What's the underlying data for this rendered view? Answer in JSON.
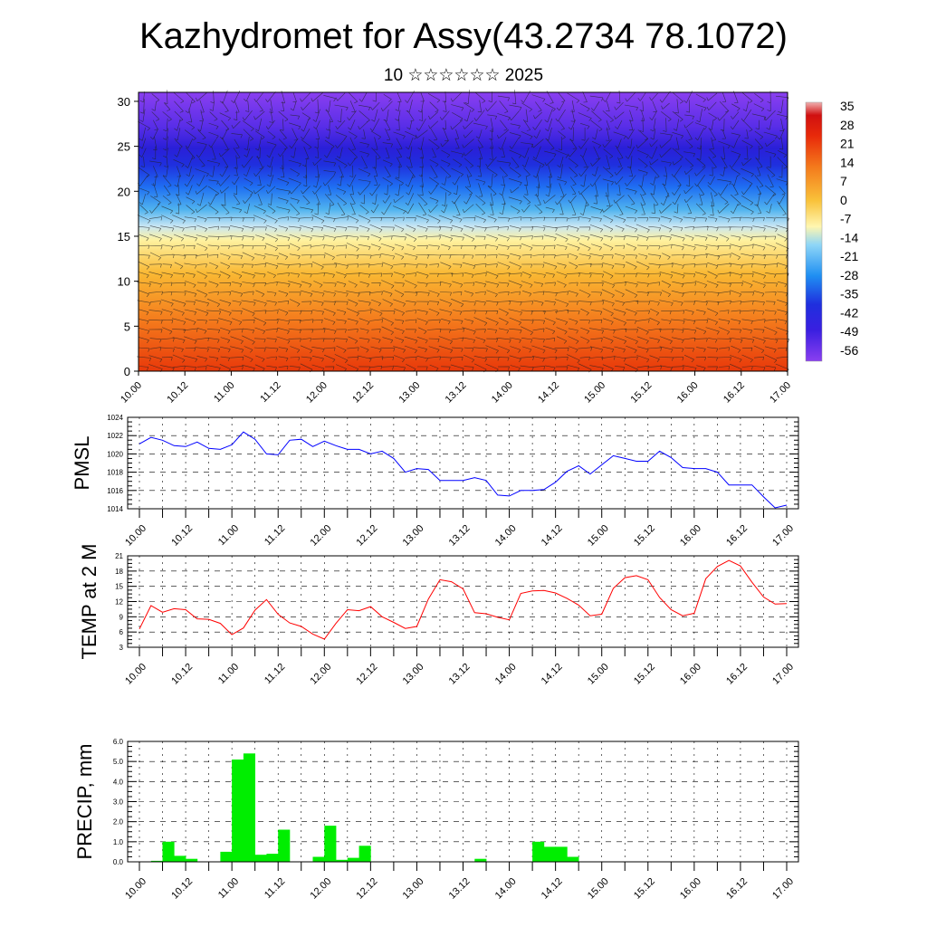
{
  "title": "Kazhydromet for Assy(43.2734 78.1072)",
  "subtitle": "10 ☆☆☆☆☆☆ 2025",
  "time_ticks": [
    "10.00",
    "10.12",
    "11.00",
    "11.12",
    "12.00",
    "12.12",
    "13.00",
    "13.12",
    "14.00",
    "14.12",
    "15.00",
    "15.12",
    "16.00",
    "16.12",
    "17.00"
  ],
  "chart_data": [
    {
      "type": "heatmap",
      "name": "cross-section",
      "y_ticks": [
        0,
        5,
        10,
        15,
        20,
        25,
        30
      ],
      "ylim": [
        0,
        31
      ],
      "colorbar_labels": [
        "35",
        "28",
        "21",
        "14",
        "7",
        "0",
        "-7",
        "-14",
        "-21",
        "-28",
        "-35",
        "-42",
        "-49",
        "-56"
      ],
      "colorbar_range": [
        -63,
        42
      ],
      "vectors": "wind barbs overlay"
    },
    {
      "type": "line",
      "ylabel": "PMSL",
      "ylim": [
        1014,
        1024
      ],
      "y_ticks": [
        "1014",
        "1016",
        "1018",
        "1020",
        "1022",
        "1024"
      ],
      "color": "#0000ff",
      "values": [
        1021.1,
        1021.8,
        1021.5,
        1020.9,
        1020.8,
        1021.3,
        1020.6,
        1020.5,
        1021.0,
        1022.4,
        1021.6,
        1020.0,
        1019.9,
        1021.5,
        1021.6,
        1020.8,
        1021.4,
        1020.9,
        1020.5,
        1020.5,
        1020.0,
        1020.3,
        1019.5,
        1018.0,
        1018.4,
        1018.3,
        1017.1,
        1017.1,
        1017.1,
        1017.4,
        1017.1,
        1015.5,
        1015.4,
        1016.0,
        1016.0,
        1016.1,
        1016.9,
        1018.1,
        1018.7,
        1017.8,
        1018.8,
        1019.8,
        1019.5,
        1019.2,
        1019.2,
        1020.3,
        1019.6,
        1018.5,
        1018.4,
        1018.4,
        1018.0,
        1016.6,
        1016.6,
        1016.6,
        1015.3,
        1014.1,
        1014.4
      ]
    },
    {
      "type": "line",
      "ylabel": "TEMP at 2 M",
      "ylim": [
        3,
        21
      ],
      "y_ticks": [
        "3",
        "6",
        "9",
        "12",
        "15",
        "18",
        "21"
      ],
      "color": "#ff0000",
      "values": [
        6.6,
        11.2,
        9.9,
        10.6,
        10.4,
        8.6,
        8.5,
        7.7,
        5.5,
        6.8,
        10.3,
        12.4,
        9.5,
        7.8,
        7.1,
        5.6,
        4.6,
        7.7,
        10.4,
        10.2,
        11.0,
        9.0,
        7.9,
        6.7,
        7.1,
        12.5,
        16.3,
        15.9,
        14.5,
        9.8,
        9.6,
        8.9,
        8.4,
        13.6,
        14.1,
        14.2,
        13.7,
        12.6,
        11.3,
        9.2,
        9.5,
        14.6,
        16.7,
        17.1,
        16.3,
        12.8,
        10.4,
        9.2,
        9.7,
        16.5,
        18.9,
        20.1,
        19.0,
        15.8,
        12.9,
        11.5,
        11.6
      ]
    },
    {
      "type": "bar",
      "ylabel": "PRECIP, mm",
      "ylim": [
        0,
        6
      ],
      "y_ticks": [
        "0.0",
        "1.0",
        "2.0",
        "3.0",
        "4.0",
        "5.0",
        "6.0"
      ],
      "color": "#00ee00",
      "values": [
        0,
        0.05,
        1.0,
        0.3,
        0.15,
        0,
        0,
        0.5,
        5.1,
        5.4,
        0.35,
        0.4,
        1.6,
        0,
        0,
        0.25,
        1.8,
        0.1,
        0.2,
        0.8,
        0,
        0,
        0,
        0,
        0,
        0,
        0,
        0,
        0,
        0.15,
        0,
        0,
        0,
        0,
        1.0,
        0.75,
        0.75,
        0.25,
        0,
        0,
        0,
        0,
        0,
        0,
        0,
        0,
        0,
        0,
        0,
        0,
        0,
        0,
        0,
        0,
        0,
        0,
        0
      ]
    }
  ]
}
